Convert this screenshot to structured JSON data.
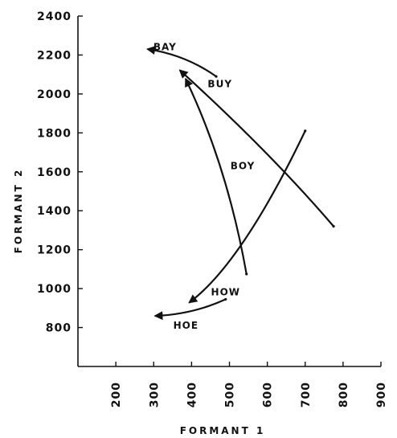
{
  "chart_data": {
    "type": "line",
    "xlabel": "FORMANT 1",
    "ylabel": "FORMANT 2",
    "xlim": [
      100,
      900
    ],
    "ylim": [
      600,
      2400
    ],
    "x_ticks": [
      200,
      300,
      400,
      500,
      600,
      700,
      800,
      900
    ],
    "y_ticks": [
      800,
      1000,
      1200,
      1400,
      1600,
      1800,
      2000,
      2200,
      2400
    ],
    "grid": false,
    "series": [
      {
        "name": "BAY",
        "x": [
          465,
          380,
          285
        ],
        "y": [
          2090,
          2180,
          2230
        ],
        "label_at": [
          330,
          2245
        ]
      },
      {
        "name": "BUY",
        "x": [
          775,
          590,
          370
        ],
        "y": [
          1320,
          1710,
          2120
        ],
        "label_at": [
          475,
          2055
        ]
      },
      {
        "name": "BOY",
        "x": [
          545,
          480,
          385
        ],
        "y": [
          1075,
          1600,
          2075
        ],
        "label_at": [
          535,
          1635
        ]
      },
      {
        "name": "HOW",
        "x": [
          700,
          540,
          395
        ],
        "y": [
          1810,
          1250,
          930
        ],
        "label_at": [
          490,
          985
        ]
      },
      {
        "name": "HOE",
        "x": [
          490,
          400,
          305
        ],
        "y": [
          945,
          885,
          860
        ],
        "label_at": [
          385,
          815
        ]
      }
    ],
    "colors": {
      "ink": "#111111",
      "background": "#ffffff"
    }
  }
}
